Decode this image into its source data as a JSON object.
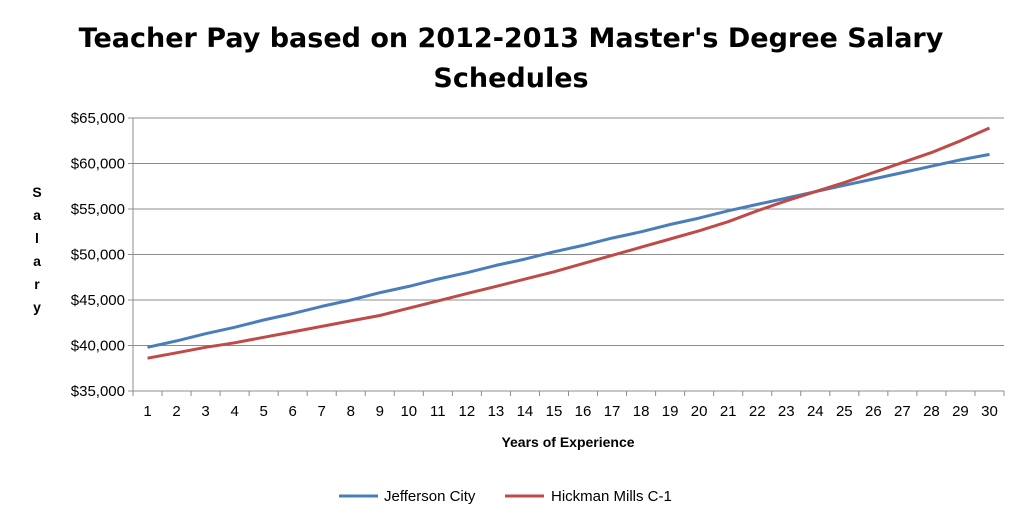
{
  "chart_data": {
    "type": "line",
    "title_line1": "Teacher Pay based on 2012-2013 Master's Degree Salary",
    "title_line2": "Schedules",
    "xlabel": "Years of Experience",
    "ylabel_letters": [
      "S",
      "a",
      "l",
      "a",
      "r",
      "y"
    ],
    "x": [
      1,
      2,
      3,
      4,
      5,
      6,
      7,
      8,
      9,
      10,
      11,
      12,
      13,
      14,
      15,
      16,
      17,
      18,
      19,
      20,
      21,
      22,
      23,
      24,
      25,
      26,
      27,
      28,
      29,
      30
    ],
    "ylim": [
      35000,
      65000
    ],
    "ytick_values": [
      35000,
      40000,
      45000,
      50000,
      55000,
      60000,
      65000
    ],
    "ytick_labels": [
      "$35,000",
      "$40,000",
      "$45,000",
      "$50,000",
      "$55,000",
      "$60,000",
      "$65,000"
    ],
    "grid": true,
    "legend_position": "bottom",
    "series": [
      {
        "name": "Jefferson City",
        "color": "#4a7ebb",
        "values": [
          39800,
          40500,
          41300,
          42000,
          42800,
          43500,
          44300,
          45000,
          45800,
          46500,
          47300,
          48000,
          48800,
          49500,
          50300,
          51000,
          51800,
          52500,
          53300,
          54000,
          54800,
          55500,
          56200,
          56900,
          57600,
          58300,
          59000,
          59700,
          60400,
          61000
        ]
      },
      {
        "name": "Hickman Mills C-1",
        "color": "#be4b48",
        "values": [
          38600,
          39200,
          39800,
          40300,
          40900,
          41500,
          42100,
          42700,
          43300,
          44100,
          44900,
          45700,
          46500,
          47300,
          48100,
          49000,
          49900,
          50800,
          51700,
          52600,
          53600,
          54800,
          55900,
          56900,
          57900,
          59000,
          60100,
          61200,
          62500,
          63900
        ]
      }
    ]
  }
}
